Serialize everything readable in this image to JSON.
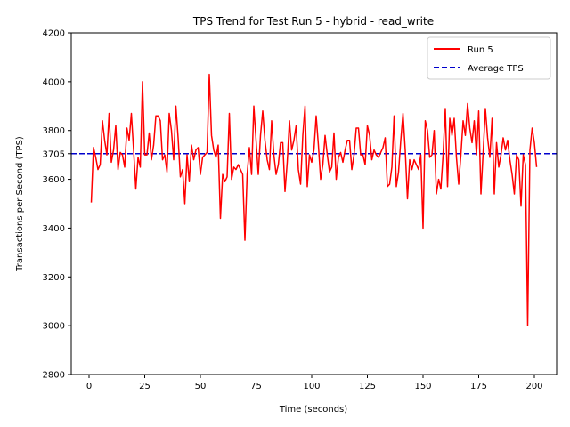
{
  "chart_data": {
    "type": "line",
    "title": "TPS Trend for Test Run 5 - hybrid - read_write",
    "xlabel": "Time (seconds)",
    "ylabel": "Transactions per Second (TPS)",
    "xlim": [
      -8,
      210
    ],
    "ylim": [
      2800,
      4200
    ],
    "xticks": [
      0,
      25,
      50,
      75,
      100,
      125,
      150,
      175,
      200
    ],
    "yticks": [
      2800,
      3000,
      3200,
      3400,
      3600,
      3705,
      3800,
      4000,
      4200
    ],
    "grid": false,
    "legend_position": "top-right",
    "colors": {
      "series": "#ff0000",
      "average": "#0000cc"
    },
    "average_tps": 3705,
    "series": [
      {
        "name": "Run 5",
        "x_start": 1,
        "x_step": 1,
        "values": [
          3505,
          3730,
          3690,
          3640,
          3660,
          3840,
          3760,
          3700,
          3870,
          3670,
          3720,
          3820,
          3640,
          3710,
          3700,
          3650,
          3810,
          3760,
          3870,
          3720,
          3560,
          3690,
          3650,
          4000,
          3700,
          3700,
          3790,
          3680,
          3740,
          3860,
          3860,
          3840,
          3680,
          3700,
          3630,
          3870,
          3800,
          3680,
          3900,
          3770,
          3610,
          3640,
          3500,
          3700,
          3590,
          3740,
          3680,
          3720,
          3730,
          3620,
          3690,
          3700,
          3710,
          4030,
          3780,
          3720,
          3690,
          3740,
          3440,
          3620,
          3590,
          3610,
          3870,
          3600,
          3650,
          3640,
          3660,
          3640,
          3620,
          3350,
          3620,
          3730,
          3620,
          3900,
          3760,
          3620,
          3780,
          3880,
          3760,
          3680,
          3640,
          3840,
          3700,
          3620,
          3660,
          3750,
          3750,
          3550,
          3670,
          3840,
          3720,
          3760,
          3820,
          3640,
          3580,
          3780,
          3900,
          3570,
          3700,
          3670,
          3720,
          3860,
          3740,
          3600,
          3660,
          3780,
          3700,
          3630,
          3650,
          3790,
          3600,
          3690,
          3710,
          3670,
          3720,
          3760,
          3760,
          3640,
          3700,
          3810,
          3810,
          3700,
          3700,
          3660,
          3820,
          3780,
          3680,
          3720,
          3700,
          3690,
          3710,
          3730,
          3770,
          3570,
          3580,
          3650,
          3860,
          3570,
          3630,
          3760,
          3870,
          3720,
          3520,
          3680,
          3640,
          3680,
          3660,
          3640,
          3700,
          3400,
          3840,
          3800,
          3690,
          3700,
          3800,
          3540,
          3600,
          3560,
          3700,
          3890,
          3570,
          3850,
          3780,
          3850,
          3690,
          3580,
          3700,
          3840,
          3780,
          3910,
          3810,
          3750,
          3840,
          3700,
          3880,
          3540,
          3710,
          3890,
          3770,
          3690,
          3850,
          3540,
          3750,
          3650,
          3700,
          3770,
          3720,
          3760,
          3680,
          3620,
          3540,
          3700,
          3680,
          3490,
          3700,
          3660,
          3000,
          3720,
          3810,
          3750,
          3650
        ]
      },
      {
        "name": "Average TPS",
        "value": 3705
      }
    ]
  }
}
